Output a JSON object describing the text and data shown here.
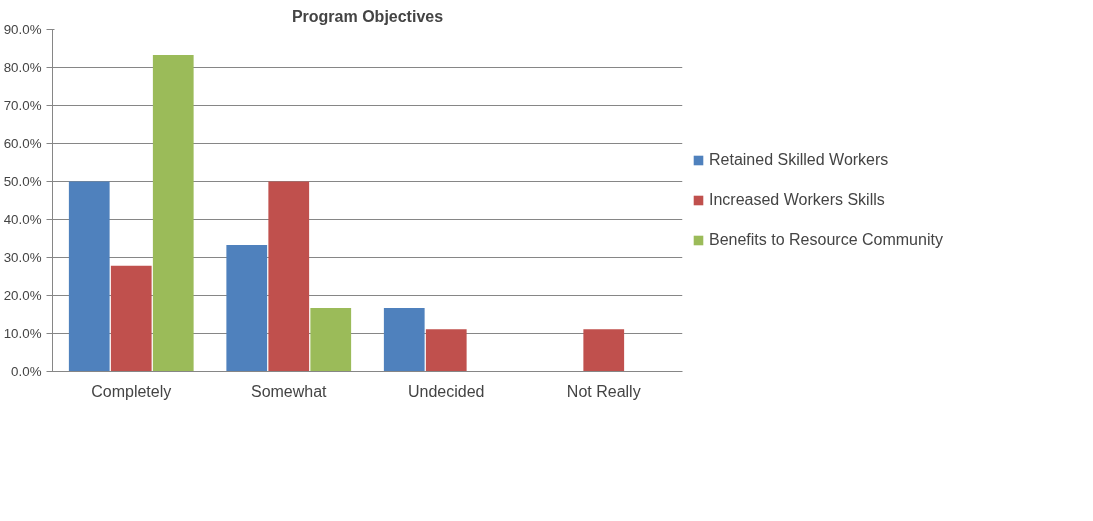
{
  "chart_data": {
    "type": "bar",
    "title": "Program Objectives",
    "categories": [
      "Completely",
      "Somewhat",
      "Undecided",
      "Not Really"
    ],
    "series": [
      {
        "name": "Retained Skilled Workers",
        "color": "#4f81bd",
        "values": [
          50.0,
          33.3,
          16.7,
          0
        ]
      },
      {
        "name": "Increased Workers Skills",
        "color": "#c0504d",
        "values": [
          27.8,
          50.0,
          11.1,
          11.1
        ]
      },
      {
        "name": "Benefits to Resource Community",
        "color": "#9bbb59",
        "values": [
          83.3,
          16.7,
          0,
          0
        ]
      }
    ],
    "ylim": [
      0,
      90
    ],
    "yticks": [
      {
        "value": 0,
        "label": "0.0%"
      },
      {
        "value": 10,
        "label": "10.0%"
      },
      {
        "value": 20,
        "label": "20.0%"
      },
      {
        "value": 30,
        "label": "30.0%"
      },
      {
        "value": 40,
        "label": "40.0%"
      },
      {
        "value": 50,
        "label": "50.0%"
      },
      {
        "value": 60,
        "label": "60.0%"
      },
      {
        "value": 70,
        "label": "70.0%"
      },
      {
        "value": 80,
        "label": "80.0%"
      },
      {
        "value": 90,
        "label": "90.0%"
      }
    ],
    "grid": "y",
    "legend": "right"
  }
}
